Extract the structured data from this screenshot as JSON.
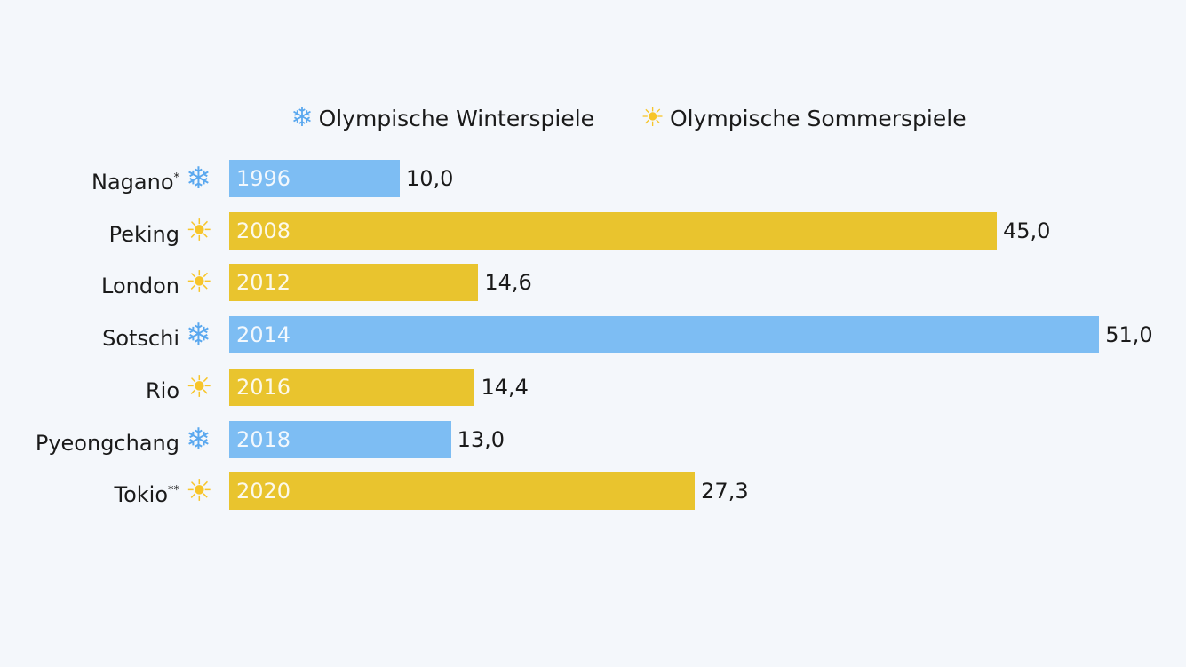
{
  "chart_data": {
    "type": "bar",
    "orientation": "horizontal",
    "legend": [
      {
        "name": "Olympische Winterspiele",
        "icon": "snowflake-icon",
        "color": "#7dbdf3"
      },
      {
        "name": "Olympische Sommerspiele",
        "icon": "sun-icon",
        "color": "#e9c42e"
      }
    ],
    "legend_placement": "top",
    "categories": [
      "Nagano",
      "Peking",
      "London",
      "Sotschi",
      "Rio",
      "Pyeongchang",
      "Tokio"
    ],
    "suffix": [
      "*",
      "",
      "",
      "",
      "",
      "",
      "**"
    ],
    "years": [
      "1996",
      "2008",
      "2012",
      "2014",
      "2016",
      "2018",
      "2020"
    ],
    "types": [
      "winter",
      "summer",
      "summer",
      "winter",
      "summer",
      "winter",
      "summer"
    ],
    "values": [
      10.0,
      45.0,
      14.6,
      51.0,
      14.4,
      13.0,
      27.3
    ],
    "value_labels": [
      "10,0",
      "45,0",
      "14,6",
      "51,0",
      "14,4",
      "13,0",
      "27,3"
    ],
    "xlim": [
      0,
      51
    ]
  }
}
